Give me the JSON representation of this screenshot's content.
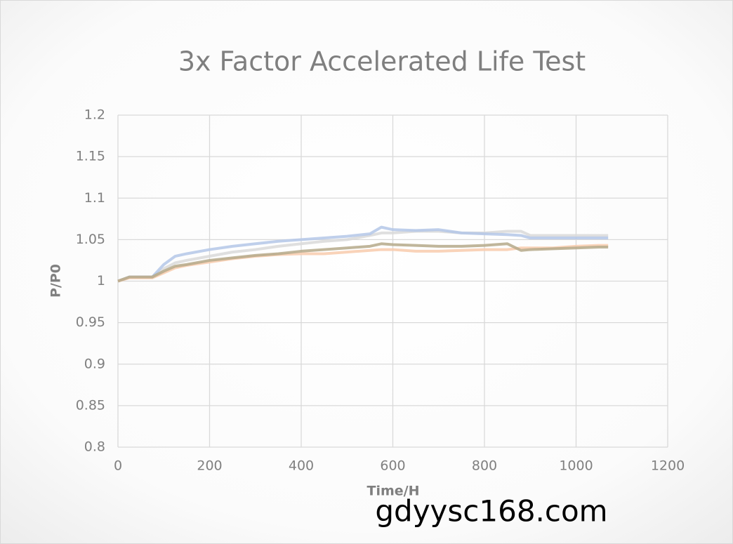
{
  "chart_data": {
    "type": "line",
    "title": "3x Factor Accelerated Life Test",
    "x_label": "Time/H",
    "y_label": "P/P0",
    "watermark": "gdyysc168.com",
    "x": [
      0,
      25,
      50,
      75,
      100,
      125,
      150,
      200,
      250,
      300,
      350,
      400,
      450,
      500,
      550,
      575,
      600,
      650,
      700,
      750,
      800,
      850,
      880,
      900,
      950,
      1000,
      1050,
      1070
    ],
    "series": [
      {
        "color": "#d9d9d9",
        "values": [
          1.0,
          1.005,
          1.005,
          1.005,
          1.015,
          1.022,
          1.025,
          1.03,
          1.035,
          1.038,
          1.042,
          1.045,
          1.048,
          1.05,
          1.055,
          1.058,
          1.058,
          1.06,
          1.06,
          1.058,
          1.058,
          1.06,
          1.06,
          1.055,
          1.055,
          1.055,
          1.055,
          1.055
        ]
      },
      {
        "color": "#b4c7e7",
        "values": [
          1.0,
          1.005,
          1.005,
          1.005,
          1.02,
          1.03,
          1.033,
          1.038,
          1.042,
          1.045,
          1.048,
          1.05,
          1.052,
          1.054,
          1.057,
          1.065,
          1.062,
          1.061,
          1.062,
          1.058,
          1.057,
          1.056,
          1.055,
          1.052,
          1.052,
          1.052,
          1.052,
          1.052
        ]
      },
      {
        "color": "#f8cbad",
        "values": [
          1.0,
          1.004,
          1.004,
          1.004,
          1.01,
          1.016,
          1.019,
          1.023,
          1.027,
          1.03,
          1.032,
          1.033,
          1.033,
          1.035,
          1.037,
          1.038,
          1.038,
          1.036,
          1.036,
          1.037,
          1.038,
          1.038,
          1.04,
          1.04,
          1.04,
          1.042,
          1.043,
          1.043
        ]
      },
      {
        "color": "#b5a98a",
        "values": [
          1.0,
          1.005,
          1.005,
          1.005,
          1.012,
          1.018,
          1.02,
          1.025,
          1.028,
          1.031,
          1.033,
          1.036,
          1.038,
          1.04,
          1.042,
          1.045,
          1.044,
          1.043,
          1.042,
          1.042,
          1.043,
          1.045,
          1.037,
          1.038,
          1.039,
          1.04,
          1.041,
          1.041
        ]
      }
    ],
    "xlim": [
      0,
      1200
    ],
    "xticks": [
      0,
      200,
      400,
      600,
      800,
      1000,
      1200
    ],
    "ylim": [
      0.8,
      1.2
    ],
    "yticks": [
      0.8,
      0.85,
      0.9,
      0.95,
      1,
      1.05,
      1.1,
      1.15,
      1.2
    ],
    "grid": true
  }
}
